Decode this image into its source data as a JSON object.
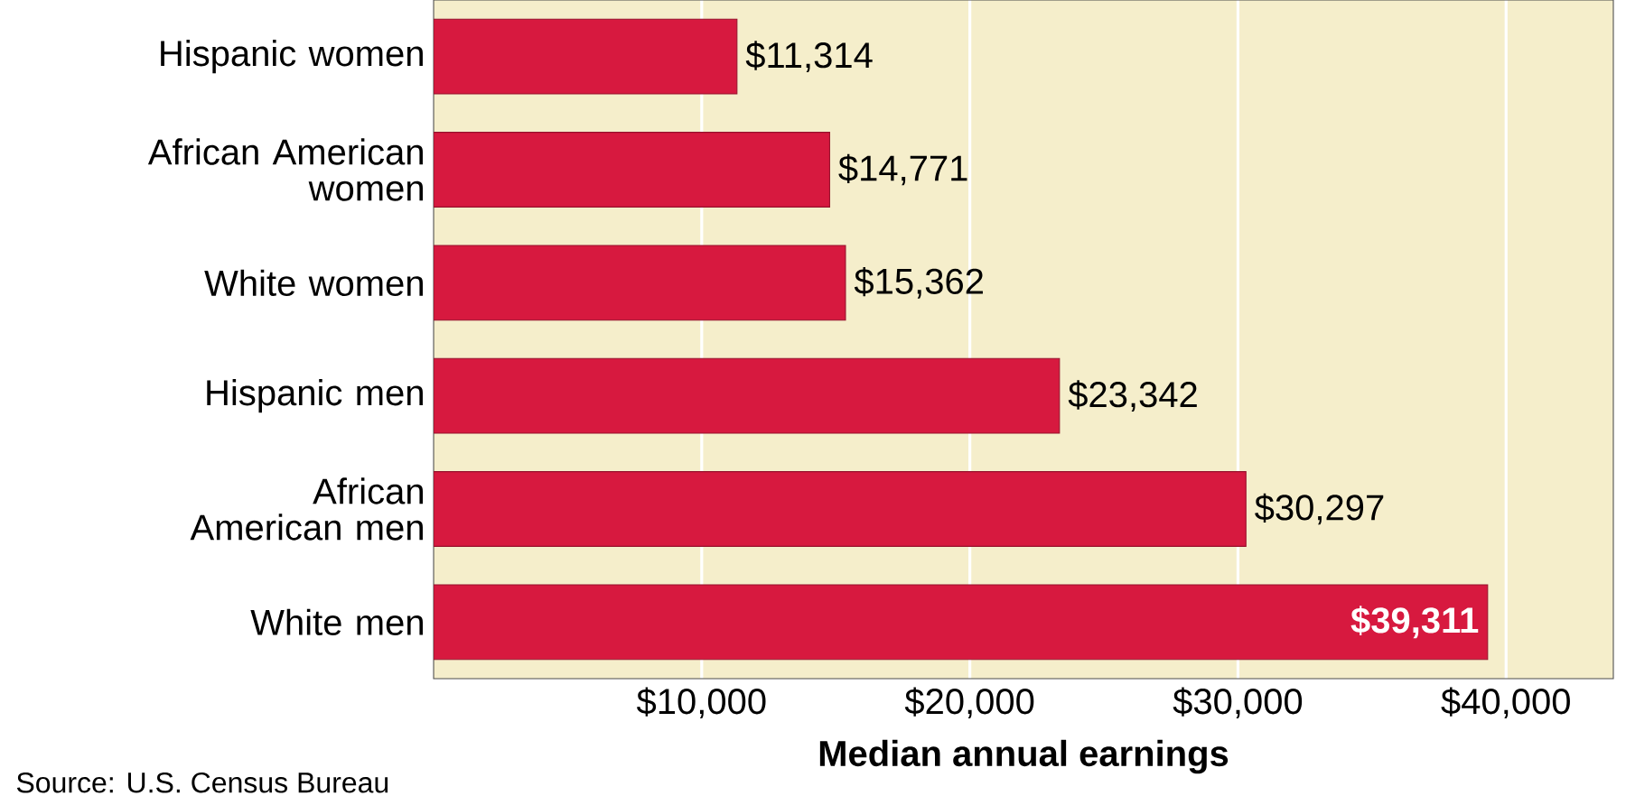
{
  "chart_data": {
    "type": "bar",
    "orientation": "horizontal",
    "xlabel": "Median annual earnings",
    "categories": [
      "Hispanic women",
      "African American women",
      "White women",
      "Hispanic men",
      "African American men",
      "White men"
    ],
    "values": [
      11314,
      14771,
      15362,
      23342,
      30297,
      39311
    ],
    "value_labels": [
      "$11,314",
      "$14,771",
      "$15,362",
      "$23,342",
      "$30,297",
      "$39,311"
    ],
    "color": "#d7193f",
    "xlim": [
      0,
      44000
    ],
    "xticks": [
      {
        "value": 10000,
        "label": "$10,000"
      },
      {
        "value": 20000,
        "label": "$20,000"
      },
      {
        "value": 30000,
        "label": "$30,000"
      },
      {
        "value": 40000,
        "label": "$40,000"
      }
    ],
    "grid": "x",
    "annotations": [
      "Source: U.S. Census Bureau"
    ]
  }
}
